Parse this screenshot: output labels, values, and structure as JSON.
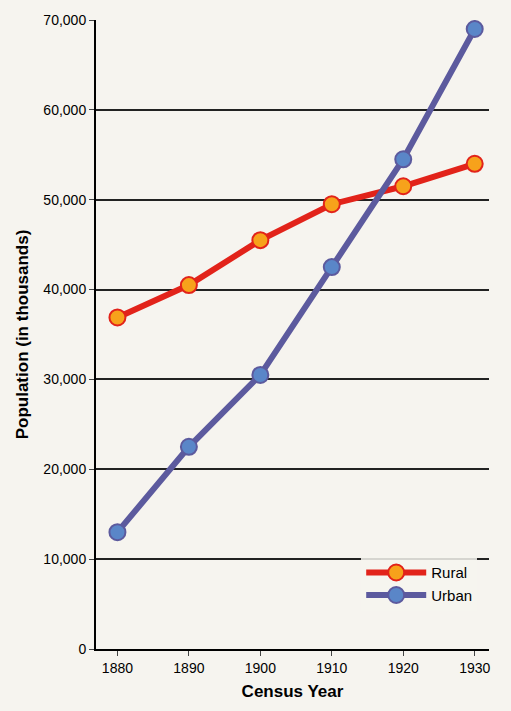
{
  "chart_data": {
    "type": "line",
    "x": [
      1880,
      1890,
      1900,
      1910,
      1920,
      1930
    ],
    "series": [
      {
        "name": "Rural",
        "color": "#e2231a",
        "marker": "circle",
        "values": [
          36900,
          40500,
          45500,
          49500,
          51500,
          54000
        ]
      },
      {
        "name": "Urban",
        "color": "#5c5a9e",
        "marker": "circle",
        "values": [
          13000,
          22500,
          30500,
          42500,
          54500,
          69000
        ]
      }
    ],
    "x_label": "Census Year",
    "y_label": "Population (in thousands)",
    "xlim": [
      1877,
      1932
    ],
    "xticks": [
      1880,
      1890,
      1900,
      1910,
      1920,
      1930
    ],
    "ylim": [
      0,
      70000
    ],
    "yticks": [
      0,
      {
        "value": 10000,
        "label": "10,000"
      },
      {
        "value": 20000,
        "label": "20,000"
      },
      {
        "value": 30000,
        "label": "30,000"
      },
      {
        "value": 40000,
        "label": "40,000"
      },
      {
        "value": 50000,
        "label": "50,000"
      },
      {
        "value": 60000,
        "label": "60,000"
      },
      {
        "value": 70000,
        "label": "70,000"
      }
    ],
    "grid": true,
    "legend": "lower right"
  }
}
